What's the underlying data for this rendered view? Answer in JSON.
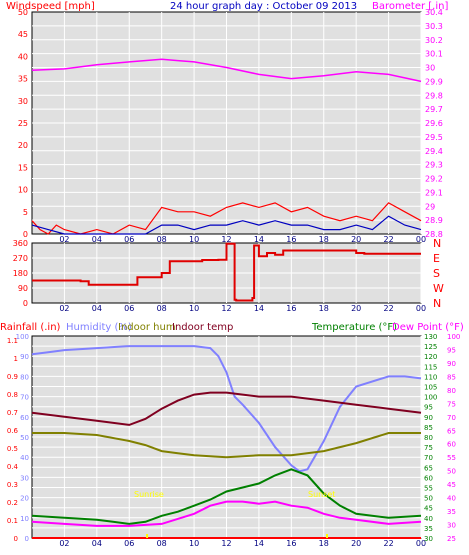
{
  "header": {
    "title": "24 hour graph day : October 09 2013",
    "left_label": "Windspeed [mph]",
    "right_label": "Barometer [.in]"
  },
  "colors": {
    "bg": "#e0e0e0",
    "grid": "#ffffff",
    "frame": "#000000",
    "wind": "#ff0000",
    "wind_avg": "#0000c0",
    "baro": "#ff00ff",
    "winddir": "#e00000",
    "rain": "#ff0000",
    "humidity": "#8080ff",
    "indoor_hum": "#808000",
    "indoor_temp": "#800020",
    "temperature": "#008000",
    "dewpoint": "#ff00ff",
    "title": "#0000c0"
  },
  "chart_data": [
    {
      "type": "line",
      "name": "wind-baro",
      "x_ticks": [
        "02",
        "04",
        "06",
        "08",
        "10",
        "12",
        "14",
        "16",
        "18",
        "20",
        "22",
        "00"
      ],
      "y_left_ticks": [
        "0",
        "5",
        "10",
        "15",
        "20",
        "25",
        "30",
        "35",
        "40",
        "45",
        "50"
      ],
      "y_right_ticks": [
        "28.8",
        "28.9",
        "29",
        "29.1",
        "29.2",
        "29.3",
        "29.4",
        "29.5",
        "29.6",
        "29.7",
        "29.8",
        "29.9",
        "30",
        "30.1",
        "30.2",
        "30.3",
        "30.4"
      ],
      "ylim_left": [
        0,
        50
      ],
      "ylim_right": [
        28.8,
        30.4
      ],
      "xlim": [
        0,
        24
      ],
      "series": [
        {
          "key": "barometer",
          "axis": "right",
          "x": [
            0,
            2,
            4,
            6,
            8,
            9,
            10,
            12,
            14,
            16,
            18,
            20,
            22,
            24
          ],
          "values": [
            29.98,
            29.99,
            30.02,
            30.04,
            30.06,
            30.05,
            30.04,
            30.0,
            29.95,
            29.92,
            29.94,
            29.97,
            29.95,
            29.9
          ]
        },
        {
          "key": "wind_gust",
          "axis": "left",
          "x": [
            0,
            0.5,
            1,
            1.5,
            2,
            3,
            4,
            5,
            6,
            7,
            8,
            9,
            10,
            11,
            12,
            13,
            14,
            15,
            16,
            17,
            18,
            19,
            20,
            21,
            22,
            23,
            24
          ],
          "values": [
            3,
            1,
            0,
            2,
            1,
            0,
            1,
            0,
            2,
            1,
            6,
            5,
            5,
            4,
            6,
            7,
            6,
            7,
            5,
            6,
            4,
            3,
            4,
            3,
            7,
            5,
            3
          ]
        },
        {
          "key": "wind_avg",
          "axis": "left",
          "x": [
            0,
            1,
            2,
            3,
            4,
            5,
            6,
            7,
            8,
            9,
            10,
            11,
            12,
            13,
            14,
            15,
            16,
            17,
            18,
            19,
            20,
            21,
            22,
            23,
            24
          ],
          "values": [
            2,
            1,
            0,
            0,
            0,
            0,
            0,
            0,
            2,
            2,
            1,
            2,
            2,
            3,
            2,
            3,
            2,
            2,
            1,
            1,
            2,
            1,
            4,
            2,
            1
          ]
        }
      ]
    },
    {
      "type": "line",
      "name": "wind-direction",
      "x_ticks": [
        "02",
        "04",
        "06",
        "08",
        "10",
        "12",
        "14",
        "16",
        "18",
        "20",
        "22",
        "00"
      ],
      "y_left_ticks": [
        "0",
        "90",
        "180",
        "270",
        "360"
      ],
      "y_right_labels": [
        "N",
        "W",
        "S",
        "E",
        "N"
      ],
      "ylim": [
        0,
        360
      ],
      "xlim": [
        0,
        24
      ],
      "series": [
        {
          "key": "direction",
          "x": [
            0,
            3,
            3.5,
            6,
            6.5,
            8,
            8.5,
            10.5,
            11.5,
            12,
            12.5,
            12.6,
            13.6,
            13.7,
            14,
            14.5,
            15,
            15.5,
            20,
            20.5,
            24
          ],
          "values": [
            135,
            130,
            110,
            110,
            155,
            180,
            250,
            258,
            260,
            355,
            20,
            15,
            30,
            345,
            280,
            300,
            290,
            315,
            300,
            295,
            295
          ]
        }
      ]
    },
    {
      "type": "line",
      "name": "temp-hum-rain",
      "x_ticks": [
        "02",
        "04",
        "06",
        "08",
        "10",
        "12",
        "14",
        "16",
        "18",
        "20",
        "22",
        "00"
      ],
      "top_labels": {
        "rainfall": "Rainfall (.in)",
        "humidity": "Humidity (%)",
        "indoor_hum": "Indoor hum",
        "indoor_temp": "Indoor temp",
        "temperature": "Temperature (°F)",
        "dewpoint": "Dew Point (°F)"
      },
      "y_rain_ticks": [
        "0",
        "0.1",
        "0.2",
        "0.3",
        "0.4",
        "0.5",
        "0.6",
        "0.7",
        "0.8",
        "0.9",
        "1",
        "1.1"
      ],
      "y_hum_ticks": [
        "0",
        "10",
        "20",
        "30",
        "40",
        "50",
        "60",
        "70",
        "80",
        "90",
        "100"
      ],
      "y_temp_ticks": [
        "30",
        "35",
        "40",
        "45",
        "50",
        "55",
        "60",
        "65",
        "70",
        "75",
        "80",
        "85",
        "90",
        "95",
        "100",
        "105",
        "110",
        "115",
        "120",
        "125",
        "130"
      ],
      "y_dew_ticks": [
        "25",
        "30",
        "35",
        "40",
        "45",
        "50",
        "55",
        "60",
        "65",
        "70",
        "75",
        "80",
        "85",
        "90",
        "95",
        "100"
      ],
      "ylim_hum": [
        0,
        100
      ],
      "ylim_temp": [
        30,
        130
      ],
      "xlim": [
        0,
        24
      ],
      "annotations": [
        {
          "text": "Sunrise",
          "x": 7.1
        },
        {
          "text": "Sunset",
          "x": 18.2
        }
      ],
      "series": [
        {
          "key": "humidity",
          "axis": "hum",
          "x": [
            0,
            1,
            2,
            4,
            6,
            8,
            10,
            11,
            11.5,
            12,
            12.5,
            13,
            14,
            15,
            16,
            16.5,
            17,
            18,
            19,
            20,
            22,
            23,
            24
          ],
          "values": [
            91,
            92,
            93,
            94,
            95,
            95,
            95,
            94,
            90,
            82,
            70,
            66,
            57,
            45,
            36,
            33,
            34,
            48,
            65,
            75,
            80,
            80,
            79
          ]
        },
        {
          "key": "indoor_temp",
          "axis": "temp",
          "x": [
            0,
            2,
            4,
            6,
            7,
            8,
            9,
            10,
            11,
            12,
            14,
            16,
            18,
            20,
            22,
            24
          ],
          "values": [
            92,
            90,
            88,
            86,
            89,
            94,
            98,
            101,
            102,
            102,
            100,
            100,
            98,
            96,
            94,
            92
          ]
        },
        {
          "key": "indoor_hum",
          "axis": "hum",
          "x": [
            0,
            2,
            4,
            6,
            7,
            8,
            9,
            10,
            12,
            14,
            16,
            18,
            20,
            22,
            24
          ],
          "values": [
            52,
            52,
            51,
            48,
            46,
            43,
            42,
            41,
            40,
            41,
            41,
            43,
            47,
            52,
            52
          ]
        },
        {
          "key": "temperature",
          "axis": "temp",
          "x": [
            0,
            2,
            4,
            5,
            6,
            7,
            8,
            9,
            10,
            11,
            12,
            13,
            14,
            15,
            16,
            17,
            18,
            19,
            20,
            22,
            24
          ],
          "values": [
            41,
            40,
            39,
            38,
            37,
            38,
            41,
            43,
            46,
            49,
            53,
            55,
            57,
            61,
            64,
            61,
            52,
            46,
            42,
            40,
            41
          ]
        },
        {
          "key": "dewpoint",
          "axis": "temp",
          "x": [
            0,
            2,
            4,
            6,
            8,
            10,
            11,
            12,
            13,
            14,
            15,
            16,
            17,
            18,
            19,
            20,
            22,
            24
          ],
          "values": [
            38,
            37,
            36,
            36,
            37,
            42,
            46,
            48,
            48,
            47,
            48,
            46,
            45,
            42,
            40,
            39,
            37,
            38
          ]
        },
        {
          "key": "rainfall",
          "axis": "rain",
          "x": [
            0,
            24
          ],
          "values": [
            0,
            0
          ]
        }
      ]
    }
  ]
}
